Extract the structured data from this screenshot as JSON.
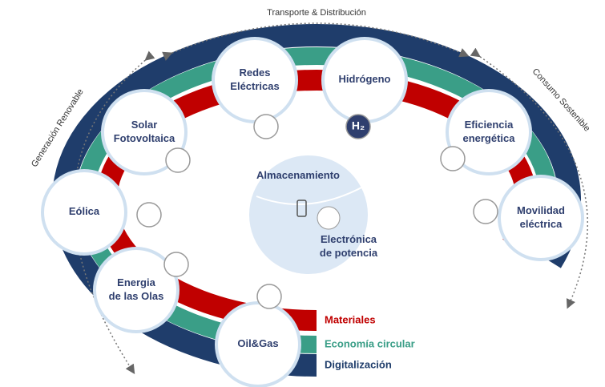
{
  "ring_labels": {
    "top": "Transporte & Distribución",
    "left": "Generación Renovable",
    "right": "Consumo Sostenible"
  },
  "legend": [
    {
      "label": "Materiales",
      "color": "#c00000"
    },
    {
      "label": "Economía circular",
      "color": "#3a9e87"
    },
    {
      "label": "Digitalización",
      "color": "#1f3d6b"
    }
  ],
  "nodes": [
    {
      "lines": [
        "Redes",
        "Eléctricas"
      ]
    },
    {
      "lines": [
        "Hidrógeno"
      ]
    },
    {
      "lines": [
        "Solar",
        "Fotovoltaica"
      ]
    },
    {
      "lines": [
        "Eficiencia",
        "energética"
      ]
    },
    {
      "lines": [
        "Eólica"
      ]
    },
    {
      "lines": [
        "Movilidad",
        "eléctrica"
      ]
    },
    {
      "lines": [
        "Energia",
        "de las Olas"
      ]
    },
    {
      "lines": [
        "Oil&Gas"
      ]
    }
  ],
  "center": {
    "top": [
      "Almacenamiento"
    ],
    "bottom": [
      "Electrónica",
      "de potencia"
    ]
  },
  "icons": {
    "h2": "H₂"
  }
}
